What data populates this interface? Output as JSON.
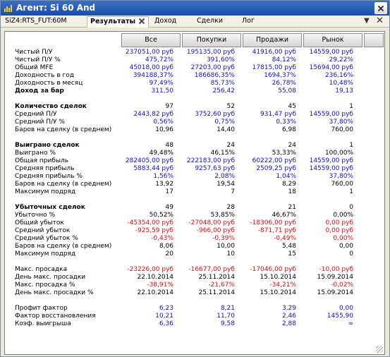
{
  "window": {
    "title": "Агент: Si 60 And"
  },
  "tabs": {
    "instrument": "SiZ4:RTS_FUT:60M",
    "results": "Результаты",
    "income": "Доход",
    "trades": "Сделки",
    "log": "Лог"
  },
  "columns": [
    "Все",
    "Покупки",
    "Продажи",
    "Рынок"
  ],
  "rows": [
    {
      "label": "Чистый П/У",
      "values": [
        "237051,00 руб",
        "195135,00 руб",
        "41916,00 руб",
        "14559,00 руб"
      ],
      "color": "blue"
    },
    {
      "label": "Чистый П/У %",
      "values": [
        "475,72%",
        "391,60%",
        "84,12%",
        "29,22%"
      ],
      "color": "blue"
    },
    {
      "label": "Общий MFE",
      "values": [
        "45018,00 руб",
        "27203,00 руб",
        "17815,00 руб",
        "15694,00 руб"
      ],
      "color": "blue"
    },
    {
      "label": "Доходность в год",
      "values": [
        "394188,37%",
        "186686,35%",
        "1694,37%",
        "236,16%"
      ],
      "color": "blue"
    },
    {
      "label": "Доходность в месяц",
      "values": [
        "97,49%",
        "85,73%",
        "26,78%",
        "10,48%"
      ],
      "color": "blue"
    },
    {
      "label": "Доход за бар",
      "values": [
        "311,50",
        "256,42",
        "55,08",
        "19,13"
      ],
      "color": "blue",
      "bold": true
    },
    {
      "label": "Количество сделок",
      "values": [
        "97",
        "52",
        "45",
        "1"
      ],
      "color": "black",
      "bold": true
    },
    {
      "label": "Средний П/У",
      "values": [
        "2443,82 руб",
        "3752,60 руб",
        "931,47 руб",
        "14559,00 руб"
      ],
      "color": "blue"
    },
    {
      "label": "Средний П/У %",
      "values": [
        "0,56%",
        "0,75%",
        "0,33%",
        "37,80%"
      ],
      "color": "blue"
    },
    {
      "label": "Баров на сделку (в среднем)",
      "values": [
        "10,96",
        "14,40",
        "6,98",
        "760,00"
      ],
      "color": "black"
    },
    {
      "label": "Выиграно сделок",
      "values": [
        "48",
        "24",
        "24",
        "1"
      ],
      "color": "black",
      "bold": true
    },
    {
      "label": "Выиграно %",
      "values": [
        "49,48%",
        "46,15%",
        "53,33%",
        "100,00%"
      ],
      "color": "black"
    },
    {
      "label": "Общая прибыль",
      "values": [
        "282405,00 руб",
        "222183,00 руб",
        "60222,00 руб",
        "14559,00 руб"
      ],
      "color": "blue"
    },
    {
      "label": "Средняя прибыль",
      "values": [
        "5883,44 руб",
        "9257,63 руб",
        "2509,25 руб",
        "14559,00 руб"
      ],
      "color": "blue"
    },
    {
      "label": "Средняя прибыль %",
      "values": [
        "1,56%",
        "2,08%",
        "1,04%",
        "37,80%"
      ],
      "color": "blue"
    },
    {
      "label": "Баров на сделку (в среднем)",
      "values": [
        "13,92",
        "19,54",
        "8,29",
        "760,00"
      ],
      "color": "black"
    },
    {
      "label": "Максимум подряд",
      "values": [
        "17",
        "7",
        "18",
        "1"
      ],
      "color": "black"
    },
    {
      "label": "Убыточных сделок",
      "values": [
        "49",
        "28",
        "21",
        "0"
      ],
      "color": "black",
      "bold": true
    },
    {
      "label": "Убыточно %",
      "values": [
        "50,52%",
        "53,85%",
        "46,67%",
        "0,00%"
      ],
      "color": "black"
    },
    {
      "label": "Общий убыток",
      "values": [
        "-45354,00 руб",
        "-27048,00 руб",
        "-18306,00 руб",
        "0,00 руб"
      ],
      "color": "red"
    },
    {
      "label": "Средний убыток",
      "values": [
        "-925,59 руб",
        "-966,00 руб",
        "-871,71 руб",
        "0,00 руб"
      ],
      "color": "red"
    },
    {
      "label": "Средний убыток %",
      "values": [
        "-0,43%",
        "-0,39%",
        "-0,49%",
        "0,00%"
      ],
      "color": "red"
    },
    {
      "label": "Баров на сделку (в среднем)",
      "values": [
        "8,06",
        "10,00",
        "5,48",
        "0,00"
      ],
      "color": "black"
    },
    {
      "label": "Максимум подряд",
      "values": [
        "20",
        "10",
        "15",
        "0"
      ],
      "color": "black"
    },
    {
      "label": "Макс. просадка",
      "values": [
        "-23226,00 руб",
        "-16677,00 руб",
        "-17046,00 руб",
        "-10,00 руб"
      ],
      "color": "red"
    },
    {
      "label": "День макс. просадки",
      "values": [
        "22.10.2014",
        "25.11.2014",
        "15.10.2014",
        "15.09.2014"
      ],
      "color": "black"
    },
    {
      "label": "Макс. просадка %",
      "values": [
        "-38,91%",
        "-21,67%",
        "-34,21%",
        "-0,02%"
      ],
      "color": "red"
    },
    {
      "label": "День макс. просадки %",
      "values": [
        "22.10.2014",
        "25.11.2014",
        "15.10.2014",
        "15.09.2014"
      ],
      "color": "black"
    },
    {
      "label": "Профит фактор",
      "values": [
        "6,23",
        "8,21",
        "3,29",
        "0,00"
      ],
      "color": "blue"
    },
    {
      "label": "Фактор восстановления",
      "values": [
        "10,21",
        "11,70",
        "2,46",
        "1455,90"
      ],
      "color": "blue"
    },
    {
      "label": "Коэф. выигрыша",
      "values": [
        "6,36",
        "9,58",
        "2,88",
        "∞"
      ],
      "color": "blue"
    }
  ]
}
